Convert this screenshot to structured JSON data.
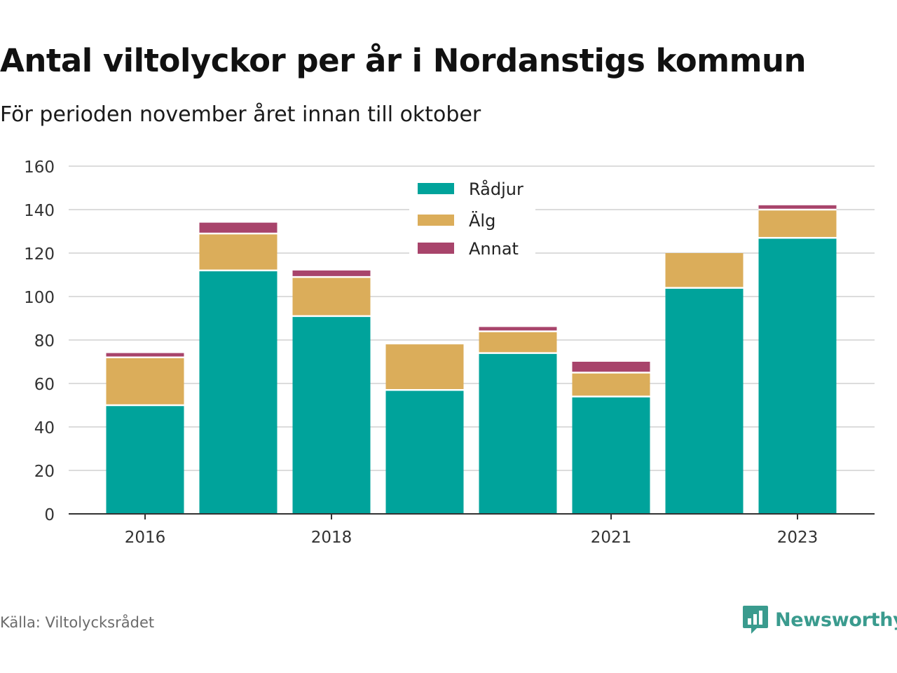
{
  "title": "Antal viltolyckor per år i Nordanstigs kommun",
  "subtitle": "För perioden november året innan till oktober",
  "source": "Källa: Viltolycksrådet",
  "brand": {
    "name": "Newsworthy",
    "icon": "newsworthy-logo-icon",
    "color": "#3a9b8e"
  },
  "chart_data": {
    "type": "bar",
    "stacked": true,
    "categories": [
      "2016",
      "2017",
      "2018",
      "2019",
      "2020",
      "2021",
      "2022",
      "2023"
    ],
    "x_tick_labels": [
      "2016",
      "",
      "2018",
      "",
      "",
      "2021",
      "",
      "2023"
    ],
    "series": [
      {
        "name": "Rådjur",
        "color": "#00a39b",
        "values": [
          50,
          112,
          91,
          57,
          74,
          54,
          104,
          127
        ]
      },
      {
        "name": "Älg",
        "color": "#dbad5a",
        "values": [
          22,
          17,
          18,
          21,
          10,
          11,
          16,
          13
        ]
      },
      {
        "name": "Annat",
        "color": "#a8446b",
        "values": [
          2,
          5,
          3,
          0,
          2,
          5,
          0,
          2
        ]
      }
    ],
    "ylim": [
      0,
      160
    ],
    "y_ticks": [
      0,
      20,
      40,
      60,
      80,
      100,
      120,
      140,
      160
    ],
    "grid": true,
    "legend_position": "top-center",
    "title": "Antal viltolyckor per år i Nordanstigs kommun",
    "xlabel": "",
    "ylabel": ""
  }
}
